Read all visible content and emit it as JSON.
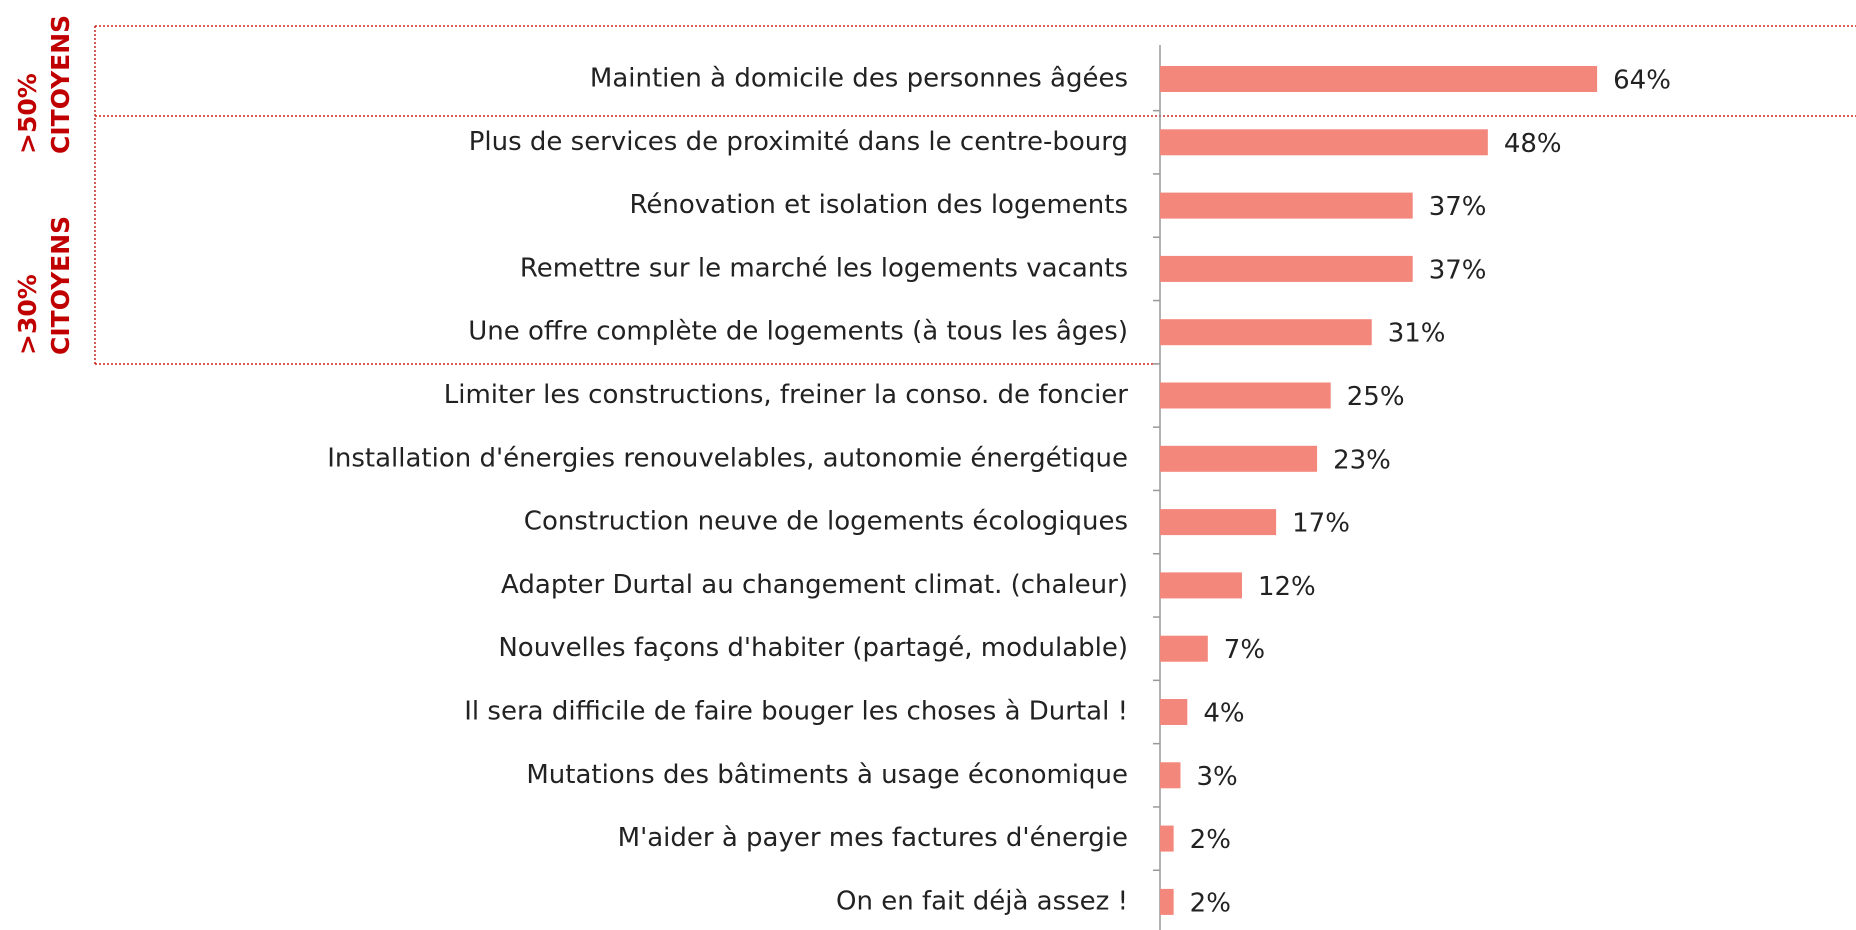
{
  "chart_data": {
    "type": "bar",
    "orientation": "horizontal",
    "categories": [
      "Maintien à domicile des personnes âgées",
      "Plus de services de proximité dans le centre-bourg",
      "Rénovation et isolation des logements",
      "Remettre sur le marché les logements vacants",
      "Une offre complète de logements (à tous les âges)",
      "Limiter les constructions, freiner la conso. de foncier",
      "Installation d'énergies renouvelables, autonomie énergétique",
      "Construction neuve de logements écologiques",
      "Adapter Durtal au changement climat. (chaleur)",
      "Nouvelles façons d'habiter (partagé, modulable)",
      "Il sera difficile de faire bouger les choses à Durtal !",
      "Mutations des bâtiments à usage économique",
      "M'aider à payer mes factures d'énergie",
      "On en fait déjà assez !"
    ],
    "values": [
      64,
      48,
      37,
      37,
      31,
      25,
      23,
      17,
      12,
      7,
      4,
      3,
      2,
      2
    ],
    "value_labels": [
      "64%",
      "48%",
      "37%",
      "37%",
      "31%",
      "25%",
      "23%",
      "17%",
      "12%",
      "7%",
      "4%",
      "3%",
      "2%",
      "2%"
    ],
    "color": "#f4877c",
    "annotations": [
      {
        "lines": [
          ">50%",
          "CITOYENS"
        ],
        "color": "#c00000"
      },
      {
        "lines": [
          ">30%",
          "CITOYENS"
        ],
        "color": "#c00000"
      }
    ]
  }
}
